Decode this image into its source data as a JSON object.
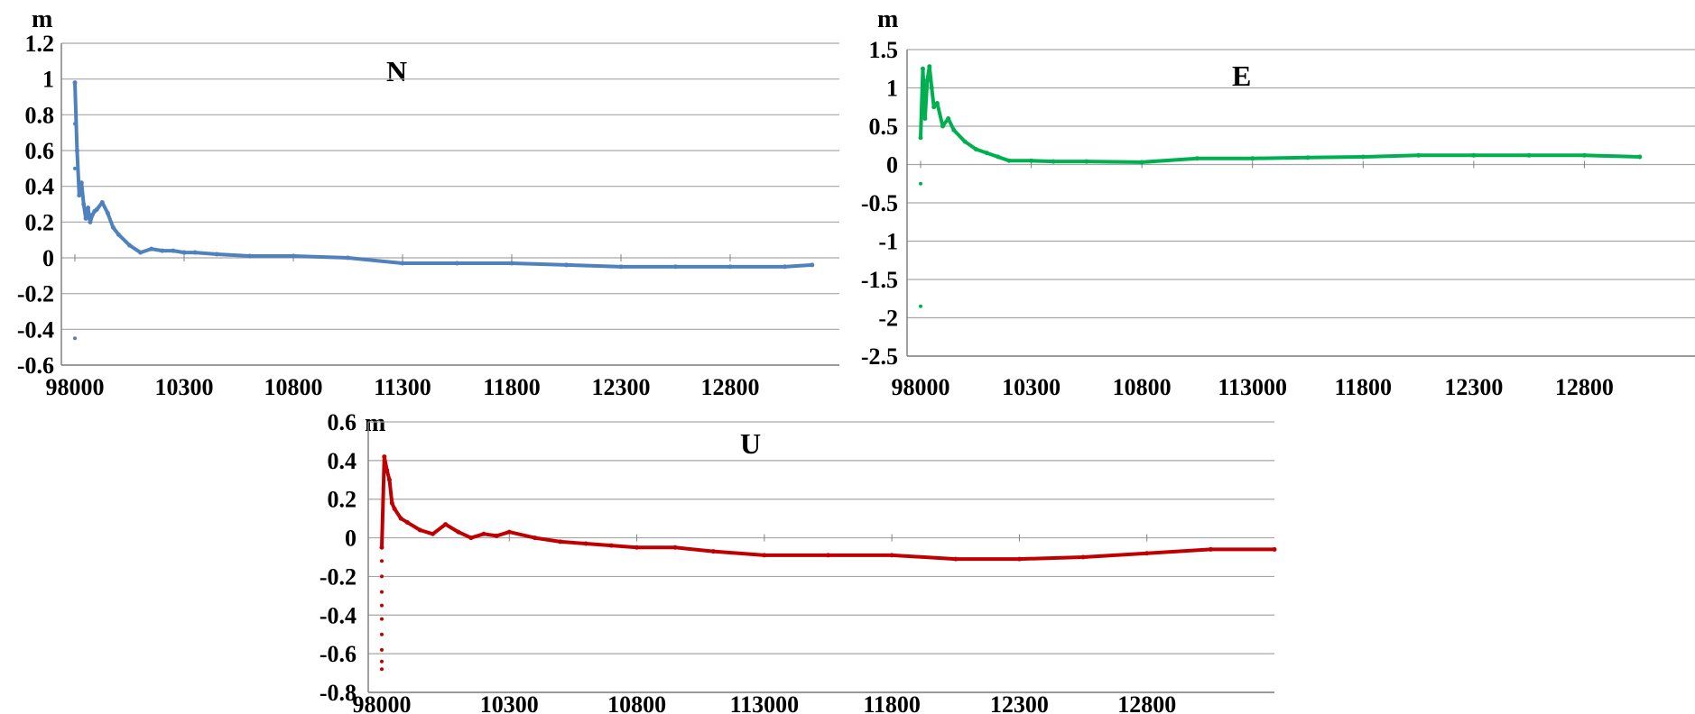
{
  "chart_data": [
    {
      "type": "scatter",
      "title": "N",
      "ylabel": "m",
      "xlabel": "",
      "color": "#4f81bd",
      "x_tick_labels": [
        "98000",
        "10300",
        "10800",
        "11300",
        "11800",
        "12300",
        "12800"
      ],
      "y_tick_labels": [
        "1.2",
        "1",
        "0.8",
        "0.6",
        "0.4",
        "0.2",
        "0",
        "-0.2",
        "-0.4",
        "-0.6"
      ],
      "ylim": [
        -0.6,
        1.2
      ],
      "x_ticks_domain": [
        0,
        1,
        2,
        3,
        4,
        5,
        6
      ],
      "xlim": [
        0,
        7
      ],
      "grid": true,
      "series": [
        {
          "x": [
            0.0,
            0.02,
            0.04,
            0.06,
            0.08,
            0.1,
            0.12,
            0.14,
            0.16,
            0.18,
            0.2,
            0.25,
            0.3,
            0.35,
            0.4,
            0.5,
            0.6,
            0.7,
            0.8,
            0.9,
            1.0,
            1.1,
            1.3,
            1.6,
            2.0,
            2.5,
            3.0,
            3.5,
            4.0,
            4.5,
            5.0,
            5.5,
            6.0,
            6.5,
            6.75
          ],
          "y": [
            0.98,
            0.6,
            0.35,
            0.42,
            0.3,
            0.22,
            0.28,
            0.2,
            0.24,
            0.26,
            0.27,
            0.31,
            0.25,
            0.17,
            0.13,
            0.07,
            0.03,
            0.05,
            0.04,
            0.04,
            0.03,
            0.03,
            0.02,
            0.01,
            0.01,
            0.0,
            -0.03,
            -0.03,
            -0.03,
            -0.04,
            -0.05,
            -0.05,
            -0.05,
            -0.05,
            -0.04
          ]
        }
      ],
      "outliers": {
        "x": [
          0.0,
          0.0,
          0.0
        ],
        "y": [
          -0.45,
          0.5,
          0.75
        ]
      }
    },
    {
      "type": "scatter",
      "title": "E",
      "ylabel": "m",
      "xlabel": "",
      "color": "#00b050",
      "x_tick_labels": [
        "98000",
        "10300",
        "10800",
        "113000",
        "11800",
        "12300",
        "12800"
      ],
      "y_tick_labels": [
        "1.5",
        "1",
        "0.5",
        "0",
        "-0.5",
        "-1",
        "-1.5",
        "-2",
        "-2.5"
      ],
      "ylim": [
        -2.5,
        1.5
      ],
      "x_ticks_domain": [
        0,
        1,
        2,
        3,
        4,
        5,
        6
      ],
      "xlim": [
        0,
        7
      ],
      "grid": true,
      "series": [
        {
          "x": [
            0.0,
            0.02,
            0.04,
            0.06,
            0.08,
            0.1,
            0.12,
            0.15,
            0.2,
            0.25,
            0.3,
            0.4,
            0.5,
            0.6,
            0.7,
            0.8,
            1.0,
            1.2,
            1.5,
            2.0,
            2.5,
            3.0,
            3.5,
            4.0,
            4.5,
            5.0,
            5.5,
            6.0,
            6.5,
            6.5
          ],
          "y": [
            0.35,
            1.25,
            0.6,
            1.1,
            1.28,
            1.0,
            0.75,
            0.8,
            0.5,
            0.6,
            0.45,
            0.3,
            0.2,
            0.15,
            0.1,
            0.05,
            0.05,
            0.04,
            0.04,
            0.03,
            0.08,
            0.08,
            0.09,
            0.1,
            0.12,
            0.12,
            0.12,
            0.12,
            0.1,
            0.1
          ]
        }
      ],
      "outliers": {
        "x": [
          0.0,
          0.0
        ],
        "y": [
          -0.25,
          -1.85
        ]
      }
    },
    {
      "type": "scatter",
      "title": "U",
      "ylabel": "m",
      "xlabel": "",
      "color": "#c00000",
      "x_tick_labels": [
        "98000",
        "10300",
        "10800",
        "113000",
        "11800",
        "12300",
        "12800"
      ],
      "y_tick_labels": [
        "0.6",
        "0.4",
        "0.2",
        "0",
        "-0.2",
        "-0.4",
        "-0.6",
        "-0.8"
      ],
      "ylim": [
        -0.8,
        0.6
      ],
      "x_ticks_domain": [
        0,
        1,
        2,
        3,
        4,
        5,
        6
      ],
      "xlim": [
        0,
        7
      ],
      "grid": true,
      "series": [
        {
          "x": [
            0.0,
            0.02,
            0.04,
            0.06,
            0.08,
            0.1,
            0.15,
            0.2,
            0.3,
            0.4,
            0.5,
            0.6,
            0.7,
            0.8,
            0.9,
            1.0,
            1.2,
            1.4,
            1.6,
            1.8,
            2.0,
            2.3,
            2.6,
            3.0,
            3.5,
            4.0,
            4.5,
            5.0,
            5.5,
            6.0,
            6.5,
            7.0
          ],
          "y": [
            -0.05,
            0.42,
            0.35,
            0.3,
            0.18,
            0.15,
            0.1,
            0.08,
            0.04,
            0.02,
            0.07,
            0.03,
            0.0,
            0.02,
            0.01,
            0.03,
            0.0,
            -0.02,
            -0.03,
            -0.04,
            -0.05,
            -0.05,
            -0.07,
            -0.09,
            -0.09,
            -0.09,
            -0.11,
            -0.11,
            -0.1,
            -0.08,
            -0.06,
            -0.06
          ]
        }
      ],
      "outliers": {
        "x": [
          0.0,
          0.0,
          0.0,
          0.0,
          0.0,
          0.0,
          0.0,
          0.0,
          0.0,
          0.0
        ],
        "y": [
          -0.05,
          -0.12,
          -0.2,
          -0.28,
          -0.35,
          -0.42,
          -0.5,
          -0.58,
          -0.64,
          -0.68
        ]
      }
    }
  ],
  "colors": {
    "grid": "#a6a6a6",
    "axis": "#808080"
  }
}
